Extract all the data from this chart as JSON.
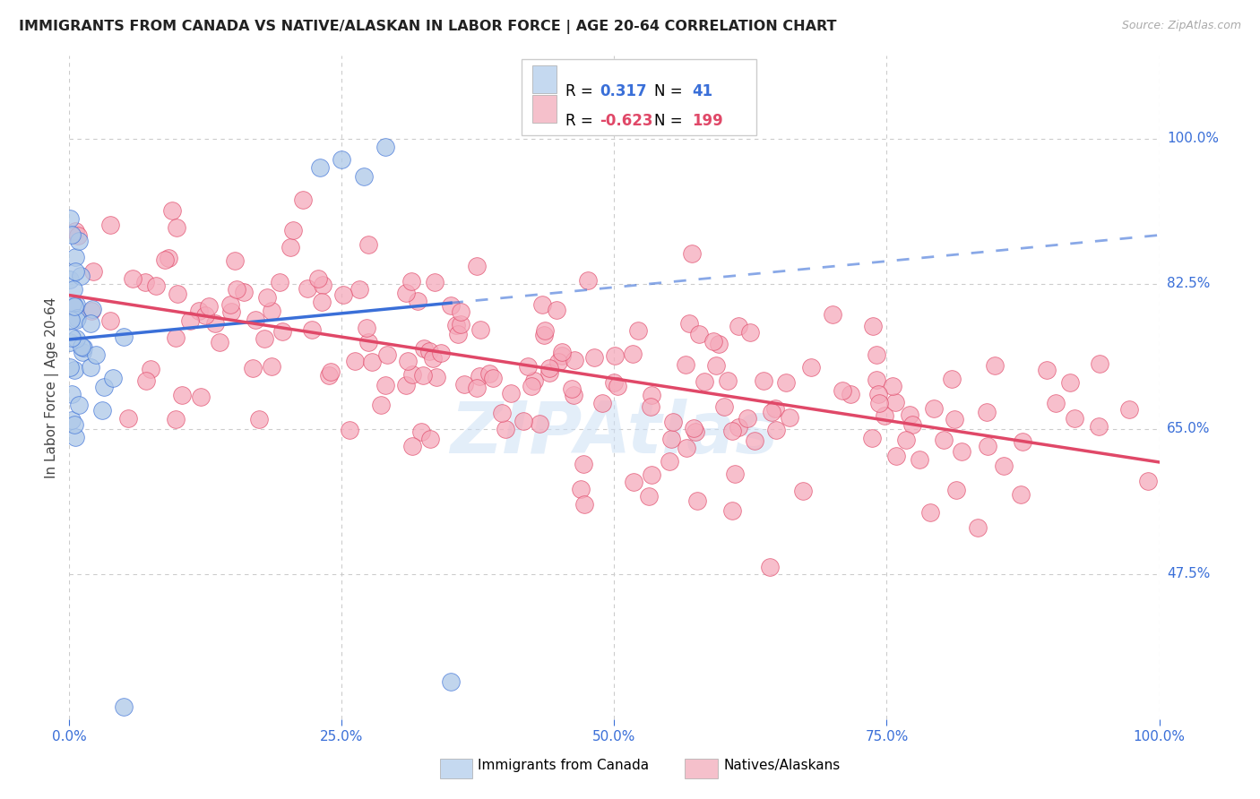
{
  "title": "IMMIGRANTS FROM CANADA VS NATIVE/ALASKAN IN LABOR FORCE | AGE 20-64 CORRELATION CHART",
  "source": "Source: ZipAtlas.com",
  "ylabel": "In Labor Force | Age 20-64",
  "ytick_labels": [
    "47.5%",
    "65.0%",
    "82.5%",
    "100.0%"
  ],
  "ytick_values": [
    0.475,
    0.65,
    0.825,
    1.0
  ],
  "xlim": [
    0.0,
    1.0
  ],
  "ylim": [
    0.3,
    1.1
  ],
  "r1": 0.317,
  "n1": 41,
  "r2": -0.623,
  "n2": 199,
  "color_canada": "#adc8e8",
  "color_native": "#f5aabb",
  "line_color_canada": "#3a6fd8",
  "line_color_native": "#e04868",
  "watermark": "ZipAtlas",
  "background_color": "#ffffff",
  "grid_color": "#cccccc",
  "legend_box_color_canada": "#c5d9f0",
  "legend_box_color_native": "#f5c0cb",
  "title_color": "#222222",
  "source_color": "#aaaaaa",
  "axis_label_color": "#3a6fd8",
  "ylabel_color": "#444444"
}
